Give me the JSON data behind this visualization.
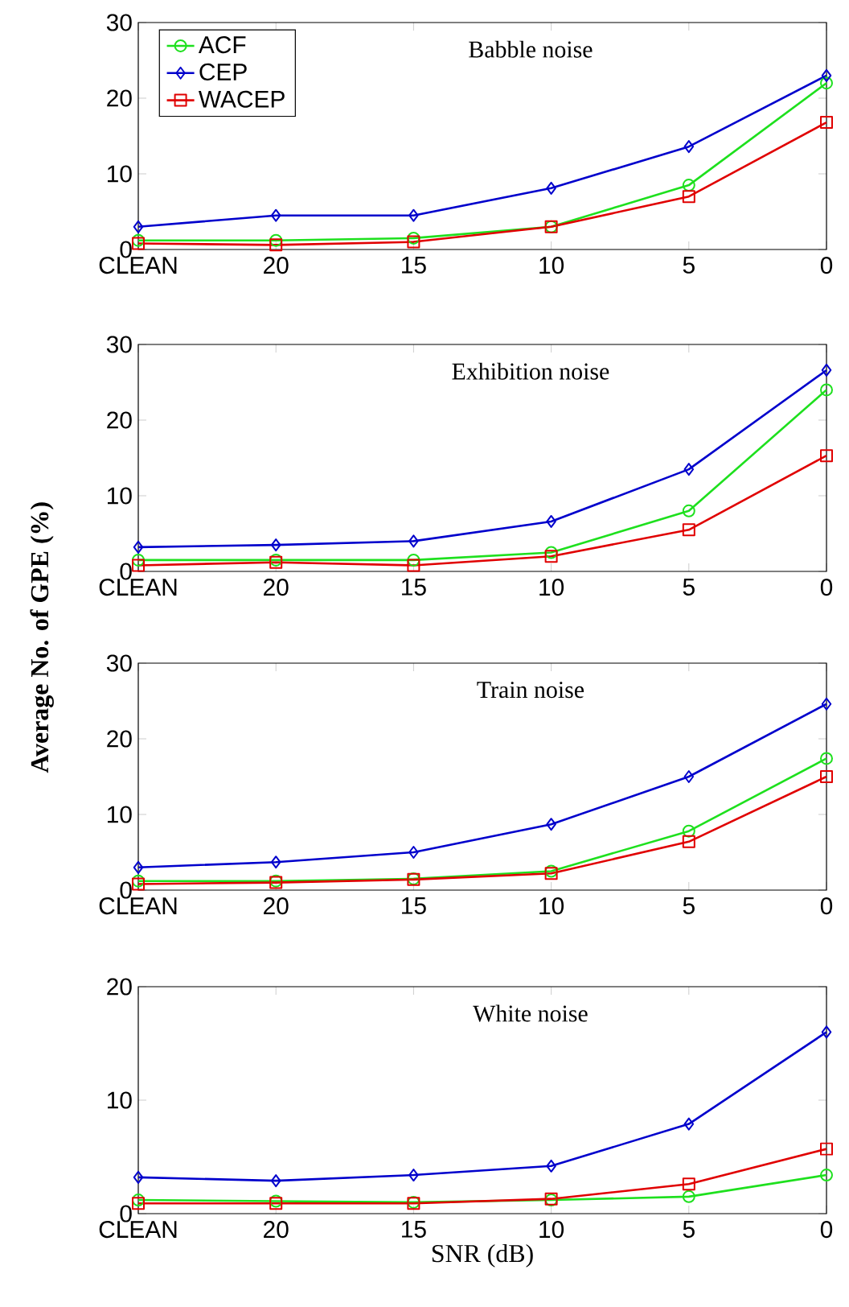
{
  "chart_data": [
    {
      "type": "line",
      "title": "Babble noise",
      "categories": [
        "CLEAN",
        "20",
        "15",
        "10",
        "5",
        "0"
      ],
      "ylim": [
        0,
        30
      ],
      "yticks": [
        0,
        10,
        20,
        30
      ],
      "legend": "top left",
      "series": [
        {
          "name": "ACF",
          "color": "#1ee01e",
          "marker": "circle",
          "values": [
            1.2,
            1.2,
            1.5,
            3.0,
            8.5,
            22.0
          ]
        },
        {
          "name": "CEP",
          "color": "#0000cc",
          "marker": "diamond",
          "values": [
            3.0,
            4.5,
            4.5,
            8.1,
            13.6,
            23.0
          ]
        },
        {
          "name": "WACEP",
          "color": "#e00000",
          "marker": "square",
          "values": [
            0.8,
            0.6,
            1.0,
            3.0,
            7.0,
            16.8
          ]
        }
      ]
    },
    {
      "type": "line",
      "title": "Exhibition noise",
      "ylabel": "Average No. of GPE (%)",
      "categories": [
        "CLEAN",
        "20",
        "15",
        "10",
        "5",
        "0"
      ],
      "ylim": [
        0,
        30
      ],
      "yticks": [
        0,
        10,
        20,
        30
      ],
      "series": [
        {
          "color": "#1ee01e",
          "marker": "circle",
          "values": [
            1.5,
            1.5,
            1.5,
            2.5,
            8.0,
            24.0
          ]
        },
        {
          "color": "#0000cc",
          "marker": "diamond",
          "values": [
            3.2,
            3.5,
            4.0,
            6.6,
            13.5,
            26.6
          ]
        },
        {
          "color": "#e00000",
          "marker": "square",
          "values": [
            0.8,
            1.2,
            0.8,
            2.0,
            5.5,
            15.3
          ]
        }
      ]
    },
    {
      "type": "line",
      "title": "Train noise",
      "categories": [
        "CLEAN",
        "20",
        "15",
        "10",
        "5",
        "0"
      ],
      "ylim": [
        0,
        30
      ],
      "yticks": [
        0,
        10,
        20,
        30
      ],
      "series": [
        {
          "color": "#1ee01e",
          "marker": "circle",
          "values": [
            1.2,
            1.2,
            1.5,
            2.5,
            7.8,
            17.4
          ]
        },
        {
          "color": "#0000cc",
          "marker": "diamond",
          "values": [
            3.0,
            3.7,
            5.0,
            8.7,
            15.0,
            24.6
          ]
        },
        {
          "color": "#e00000",
          "marker": "square",
          "values": [
            0.8,
            1.0,
            1.4,
            2.2,
            6.4,
            15.0
          ]
        }
      ]
    },
    {
      "type": "line",
      "title": "White noise",
      "xlabel": "SNR (dB)",
      "categories": [
        "CLEAN",
        "20",
        "15",
        "10",
        "5",
        "0"
      ],
      "ylim": [
        0,
        20
      ],
      "yticks": [
        0,
        10,
        20
      ],
      "series": [
        {
          "color": "#1ee01e",
          "marker": "circle",
          "values": [
            1.2,
            1.1,
            1.0,
            1.2,
            1.5,
            3.4
          ]
        },
        {
          "color": "#0000cc",
          "marker": "diamond",
          "values": [
            3.2,
            2.9,
            3.4,
            4.2,
            7.9,
            16.0
          ]
        },
        {
          "color": "#e00000",
          "marker": "square",
          "values": [
            0.9,
            0.9,
            0.9,
            1.3,
            2.6,
            5.7
          ]
        }
      ]
    }
  ]
}
